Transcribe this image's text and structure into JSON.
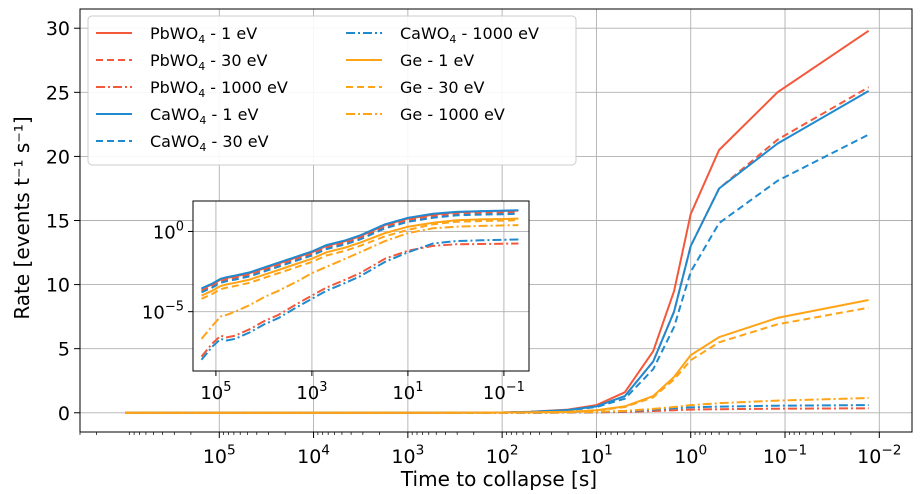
{
  "chart_data": {
    "type": "line",
    "xlabel": "Time to collapse [s]",
    "ylabel": "Rate [events t⁻¹ s⁻¹]",
    "x_scale": "log",
    "x_reversed": true,
    "xlim": [
      3000000,
      0.0045
    ],
    "ylim": [
      -1.5,
      31.5
    ],
    "grid": true,
    "legend_position": "upper left",
    "x_ticks": [
      {
        "value": 100000,
        "label": "10^5"
      },
      {
        "value": 10000,
        "label": "10^4"
      },
      {
        "value": 1000,
        "label": "10^3"
      },
      {
        "value": 100,
        "label": "10^2"
      },
      {
        "value": 10,
        "label": "10^1"
      },
      {
        "value": 1,
        "label": "10^0"
      },
      {
        "value": 0.1,
        "label": "10^-1"
      },
      {
        "value": 0.01,
        "label": "10^-2"
      }
    ],
    "y_ticks": [
      {
        "value": 0,
        "label": "0"
      },
      {
        "value": 5,
        "label": "5"
      },
      {
        "value": 10,
        "label": "10"
      },
      {
        "value": 15,
        "label": "15"
      },
      {
        "value": 20,
        "label": "20"
      },
      {
        "value": 25,
        "label": "25"
      },
      {
        "value": 30,
        "label": "30"
      }
    ],
    "x": [
      1000000,
      100000,
      50000,
      20000,
      10000,
      1000,
      100,
      50,
      20,
      10,
      5,
      2.5,
      1.5,
      1,
      0.5,
      0.12,
      0.013
    ],
    "series": [
      {
        "name": "PbWO4 - 1 eV",
        "color": "#f4583b",
        "dash": "solid",
        "values": [
          0,
          0,
          0,
          0,
          0,
          0,
          0.02,
          0.08,
          0.25,
          0.6,
          1.6,
          4.8,
          9.5,
          15.5,
          20.5,
          25,
          29.8
        ]
      },
      {
        "name": "PbWO4 - 30 eV",
        "color": "#f4583b",
        "dash": "dashed",
        "values": [
          0,
          0,
          0,
          0,
          0,
          0,
          0.02,
          0.07,
          0.22,
          0.5,
          1.3,
          4.0,
          7.9,
          13.0,
          17.5,
          21.3,
          25.4
        ]
      },
      {
        "name": "PbWO4 - 1000 eV",
        "color": "#f4583b",
        "dash": "dashdot",
        "values": [
          0,
          0,
          0,
          0,
          0,
          0,
          0,
          0,
          0.01,
          0.03,
          0.07,
          0.14,
          0.2,
          0.25,
          0.28,
          0.32,
          0.35
        ]
      },
      {
        "name": "CaWO4 - 1 eV",
        "color": "#1f8ad0",
        "dash": "solid",
        "values": [
          0,
          0,
          0,
          0,
          0,
          0,
          0.02,
          0.07,
          0.22,
          0.5,
          1.3,
          4.0,
          7.9,
          13.0,
          17.5,
          21.0,
          25.1
        ]
      },
      {
        "name": "CaWO4 - 30 eV",
        "color": "#1f8ad0",
        "dash": "dashed",
        "values": [
          0,
          0,
          0,
          0,
          0,
          0,
          0.02,
          0.06,
          0.19,
          0.45,
          1.1,
          3.4,
          6.7,
          11.0,
          14.8,
          18.1,
          21.7
        ]
      },
      {
        "name": "CaWO4 - 1000 eV",
        "color": "#1f8ad0",
        "dash": "dashdot",
        "values": [
          0,
          0,
          0,
          0,
          0,
          0,
          0,
          0,
          0.02,
          0.05,
          0.12,
          0.25,
          0.35,
          0.42,
          0.48,
          0.55,
          0.6
        ]
      },
      {
        "name": "Ge - 1 eV",
        "color": "#ffa417",
        "dash": "solid",
        "values": [
          0,
          0,
          0,
          0,
          0,
          0,
          0.01,
          0.03,
          0.08,
          0.2,
          0.5,
          1.3,
          2.8,
          4.5,
          5.9,
          7.4,
          8.8
        ]
      },
      {
        "name": "Ge - 30 eV",
        "color": "#ffa417",
        "dash": "dashed",
        "values": [
          0,
          0,
          0,
          0,
          0,
          0,
          0.01,
          0.03,
          0.07,
          0.18,
          0.45,
          1.2,
          2.6,
          4.1,
          5.5,
          6.9,
          8.2
        ]
      },
      {
        "name": "Ge - 1000 eV",
        "color": "#ffa417",
        "dash": "dashdot",
        "values": [
          0,
          0,
          0,
          0,
          0,
          0,
          0,
          0.01,
          0.03,
          0.07,
          0.15,
          0.3,
          0.45,
          0.6,
          0.75,
          0.95,
          1.15
        ]
      }
    ],
    "inset": {
      "y_scale": "log",
      "x_scale": "log",
      "x_reversed": true,
      "xlim": [
        300000,
        0.03
      ],
      "ylim": [
        -8.7,
        1.9
      ],
      "x_ticks": [
        {
          "value": 100000,
          "label": "10^5"
        },
        {
          "value": 1000,
          "label": "10^3"
        },
        {
          "value": 10,
          "label": "10^1"
        },
        {
          "value": 0.1,
          "label": "10^-1"
        }
      ],
      "y_ticks": [
        {
          "value": 0,
          "label": "10^0"
        },
        {
          "value": -5,
          "label": "10^-5"
        }
      ],
      "x": [
        200000,
        120000,
        80000,
        60000,
        40000,
        20000,
        10000,
        5000,
        2000,
        1000,
        500,
        200,
        100,
        30,
        10,
        3,
        1,
        0.3,
        0.1,
        0.05
      ],
      "series_log10": [
        [
          -3.6,
          -3.3,
          -3.0,
          -2.9,
          -2.8,
          -2.6,
          -2.3,
          -2.0,
          -1.6,
          -1.3,
          -0.9,
          -0.6,
          -0.3,
          0.4,
          0.8,
          1.05,
          1.2,
          1.25,
          1.28,
          1.3
        ],
        [
          -3.7,
          -3.4,
          -3.1,
          -3.0,
          -2.9,
          -2.7,
          -2.4,
          -2.1,
          -1.7,
          -1.4,
          -1.0,
          -0.7,
          -0.4,
          0.3,
          0.7,
          0.95,
          1.1,
          1.15,
          1.18,
          1.2
        ],
        [
          -7.8,
          -7.0,
          -6.5,
          -6.6,
          -6.5,
          -6.1,
          -5.6,
          -5.2,
          -4.5,
          -4.0,
          -3.5,
          -3.0,
          -2.6,
          -1.7,
          -1.2,
          -0.9,
          -0.8,
          -0.78,
          -0.76,
          -0.75
        ],
        [
          -3.55,
          -3.25,
          -2.95,
          -2.85,
          -2.75,
          -2.55,
          -2.25,
          -1.95,
          -1.55,
          -1.25,
          -0.85,
          -0.55,
          -0.25,
          0.45,
          0.85,
          1.1,
          1.22,
          1.27,
          1.3,
          1.32
        ],
        [
          -3.8,
          -3.5,
          -3.2,
          -3.1,
          -3.0,
          -2.8,
          -2.5,
          -2.2,
          -1.8,
          -1.5,
          -1.1,
          -0.8,
          -0.5,
          0.2,
          0.6,
          0.85,
          1.0,
          1.05,
          1.08,
          1.1
        ],
        [
          -8.0,
          -7.2,
          -6.7,
          -6.8,
          -6.7,
          -6.3,
          -5.8,
          -5.4,
          -4.7,
          -4.2,
          -3.7,
          -3.2,
          -2.8,
          -1.9,
          -1.3,
          -0.75,
          -0.6,
          -0.55,
          -0.52,
          -0.5
        ],
        [
          -4.0,
          -3.7,
          -3.4,
          -3.3,
          -3.2,
          -3.0,
          -2.7,
          -2.4,
          -2.0,
          -1.7,
          -1.3,
          -1.0,
          -0.7,
          -0.1,
          0.3,
          0.55,
          0.7,
          0.75,
          0.78,
          0.8
        ],
        [
          -4.2,
          -3.9,
          -3.6,
          -3.5,
          -3.4,
          -3.2,
          -2.9,
          -2.6,
          -2.2,
          -1.9,
          -1.5,
          -1.2,
          -0.9,
          -0.3,
          0.1,
          0.45,
          0.6,
          0.65,
          0.68,
          0.7
        ]
      ],
      "series_log10_ge1000": [
        -6.7,
        -5.9,
        -5.3,
        -5.2,
        -5.0,
        -4.6,
        -4.1,
        -3.7,
        -3.1,
        -2.6,
        -2.2,
        -1.7,
        -1.3,
        -0.6,
        -0.1,
        0.2,
        0.3,
        0.35,
        0.38,
        0.4
      ]
    }
  }
}
